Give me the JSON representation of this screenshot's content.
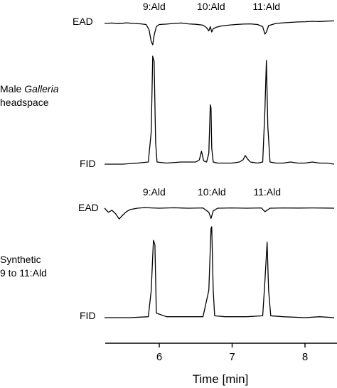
{
  "chart_data": {
    "type": "line",
    "xlabel": "Time [min]",
    "xlim": [
      5.25,
      8.4
    ],
    "xticks": [
      6,
      7,
      8
    ],
    "grid": false,
    "panels": [
      {
        "sample_label": [
          "Male Galleria",
          "headspace"
        ],
        "sample_label_italic_word": "Galleria",
        "ead_label": "EAD",
        "fid_label": "FID",
        "annotations": [
          {
            "text": "9:Ald",
            "x": 5.93
          },
          {
            "text": "10:Ald",
            "x": 6.71
          },
          {
            "text": "11:Ald",
            "x": 7.47
          }
        ],
        "series": [
          {
            "name": "EAD",
            "x": [
              5.25,
              5.35,
              5.45,
              5.55,
              5.65,
              5.75,
              5.82,
              5.86,
              5.89,
              5.91,
              5.93,
              5.96,
              6.0,
              6.1,
              6.2,
              6.3,
              6.4,
              6.5,
              6.6,
              6.65,
              6.68,
              6.7,
              6.72,
              6.74,
              6.78,
              6.85,
              6.95,
              7.05,
              7.15,
              7.25,
              7.35,
              7.42,
              7.45,
              7.47,
              7.5,
              7.6,
              7.7,
              7.8,
              7.9,
              8.0,
              8.1,
              8.2,
              8.3,
              8.4
            ],
            "y": [
              0.0,
              0.02,
              -0.01,
              0.03,
              0.0,
              -0.02,
              -0.05,
              -0.3,
              -0.85,
              -1.0,
              -0.55,
              -0.15,
              -0.05,
              -0.03,
              0.0,
              0.02,
              -0.02,
              -0.04,
              -0.08,
              -0.2,
              -0.35,
              -0.15,
              -0.4,
              -0.25,
              -0.18,
              -0.12,
              -0.08,
              -0.05,
              -0.03,
              -0.02,
              -0.05,
              -0.15,
              -0.5,
              -0.4,
              -0.1,
              0.0,
              0.03,
              0.05,
              0.07,
              0.08,
              0.1,
              0.09,
              0.11,
              0.12
            ]
          },
          {
            "name": "FID",
            "x": [
              5.25,
              5.5,
              5.7,
              5.85,
              5.89,
              5.91,
              5.93,
              5.95,
              5.97,
              6.1,
              6.3,
              6.5,
              6.55,
              6.58,
              6.61,
              6.65,
              6.68,
              6.7,
              6.71,
              6.72,
              6.74,
              6.8,
              7.0,
              7.1,
              7.15,
              7.18,
              7.21,
              7.25,
              7.35,
              7.42,
              7.45,
              7.47,
              7.49,
              7.52,
              7.6,
              7.7,
              7.8,
              7.9,
              8.0,
              8.1,
              8.2,
              8.3,
              8.4
            ],
            "y": [
              0.0,
              0.0,
              0.01,
              0.02,
              0.3,
              1.0,
              0.95,
              0.2,
              0.02,
              0.01,
              0.02,
              0.02,
              0.04,
              0.12,
              0.03,
              0.02,
              0.1,
              0.55,
              0.52,
              0.15,
              0.02,
              0.01,
              0.01,
              0.02,
              0.04,
              0.08,
              0.05,
              0.02,
              0.01,
              0.02,
              0.5,
              0.96,
              0.35,
              0.02,
              0.01,
              0.01,
              0.02,
              0.01,
              0.01,
              0.02,
              0.01,
              0.01,
              0.0
            ]
          }
        ]
      },
      {
        "sample_label": [
          "Synthetic",
          "9 to 11:Ald"
        ],
        "sample_label_italic_word": "",
        "ead_label": "EAD",
        "fid_label": "FID",
        "annotations": [
          {
            "text": "9:Ald",
            "x": 5.93
          },
          {
            "text": "10:Ald",
            "x": 6.72
          },
          {
            "text": "11:Ald",
            "x": 7.48
          }
        ],
        "series": [
          {
            "name": "EAD",
            "x": [
              5.25,
              5.3,
              5.35,
              5.4,
              5.45,
              5.5,
              5.55,
              5.6,
              5.7,
              5.8,
              5.9,
              6.0,
              6.2,
              6.4,
              6.6,
              6.68,
              6.71,
              6.74,
              6.8,
              7.0,
              7.2,
              7.4,
              7.45,
              7.48,
              7.52,
              7.7,
              7.9,
              8.1,
              8.3,
              8.4
            ],
            "y": [
              0.0,
              -0.3,
              -0.15,
              -0.4,
              -0.8,
              -0.5,
              -0.25,
              -0.1,
              0.0,
              0.05,
              0.02,
              0.0,
              0.03,
              0.0,
              0.02,
              -0.3,
              -0.75,
              -0.2,
              0.0,
              0.02,
              0.0,
              0.02,
              -0.25,
              -0.15,
              0.0,
              0.02,
              0.01,
              0.02,
              0.01,
              0.0
            ]
          },
          {
            "name": "FID",
            "x": [
              5.25,
              5.6,
              5.85,
              5.89,
              5.92,
              5.94,
              5.96,
              6.1,
              6.4,
              6.6,
              6.68,
              6.71,
              6.72,
              6.74,
              6.76,
              6.9,
              7.2,
              7.42,
              7.45,
              7.48,
              7.5,
              7.53,
              7.7,
              8.0,
              8.2,
              8.4
            ],
            "y": [
              0.0,
              0.0,
              0.01,
              0.3,
              0.85,
              0.8,
              0.05,
              0.01,
              0.01,
              0.01,
              0.3,
              0.98,
              1.0,
              0.3,
              0.02,
              0.01,
              0.01,
              0.02,
              0.4,
              0.83,
              0.3,
              0.02,
              0.01,
              0.0,
              0.01,
              0.0
            ]
          }
        ]
      }
    ]
  }
}
